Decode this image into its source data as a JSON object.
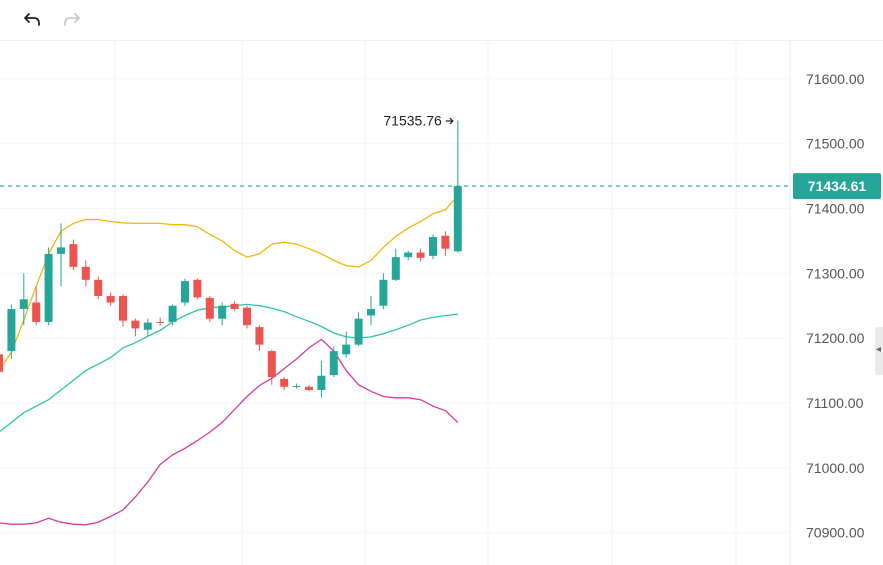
{
  "toolbar": {
    "undo_icon": "undo-arrow-icon",
    "redo_icon": "redo-arrow-icon"
  },
  "colors": {
    "up": "#26a69a",
    "down": "#ef5350",
    "upper_band": "#f0b90b",
    "middle_band": "#2ec4a6",
    "lower_band": "#d63b9b",
    "last_price_line": "#26a69a"
  },
  "chart_data": {
    "type": "candlestick",
    "ylim": [
      70850,
      71660
    ],
    "y_ticks": [
      "71600.00",
      "71500.00",
      "71400.00",
      "71300.00",
      "71200.00",
      "71100.00",
      "71000.00",
      "70900.00"
    ],
    "y_tick_values": [
      71600,
      71500,
      71400,
      71300,
      71200,
      71100,
      71000,
      70900
    ],
    "last_price": 71434.61,
    "last_price_label": "71434.61",
    "high_marker": {
      "value": 71535.76,
      "label": "71535.76"
    },
    "candles": [
      {
        "o": 71175,
        "h": 71235,
        "l": 71142,
        "c": 71148
      },
      {
        "o": 71180,
        "h": 71252,
        "l": 71168,
        "c": 71245
      },
      {
        "o": 71245,
        "h": 71300,
        "l": 71220,
        "c": 71260
      },
      {
        "o": 71255,
        "h": 71280,
        "l": 71220,
        "c": 71225
      },
      {
        "o": 71225,
        "h": 71340,
        "l": 71220,
        "c": 71330
      },
      {
        "o": 71330,
        "h": 71377,
        "l": 71280,
        "c": 71340
      },
      {
        "o": 71345,
        "h": 71352,
        "l": 71305,
        "c": 71310
      },
      {
        "o": 71310,
        "h": 71320,
        "l": 71280,
        "c": 71290
      },
      {
        "o": 71290,
        "h": 71295,
        "l": 71260,
        "c": 71265
      },
      {
        "o": 71265,
        "h": 71270,
        "l": 71250,
        "c": 71255
      },
      {
        "o": 71265,
        "h": 71268,
        "l": 71218,
        "c": 71227
      },
      {
        "o": 71227,
        "h": 71230,
        "l": 71203,
        "c": 71215
      },
      {
        "o": 71213,
        "h": 71230,
        "l": 71202,
        "c": 71224
      },
      {
        "o": 71225,
        "h": 71232,
        "l": 71219,
        "c": 71224
      },
      {
        "o": 71225,
        "h": 71252,
        "l": 71220,
        "c": 71250
      },
      {
        "o": 71255,
        "h": 71292,
        "l": 71250,
        "c": 71288
      },
      {
        "o": 71290,
        "h": 71292,
        "l": 71260,
        "c": 71263
      },
      {
        "o": 71262,
        "h": 71265,
        "l": 71225,
        "c": 71230
      },
      {
        "o": 71230,
        "h": 71255,
        "l": 71220,
        "c": 71250
      },
      {
        "o": 71253,
        "h": 71257,
        "l": 71242,
        "c": 71245
      },
      {
        "o": 71247,
        "h": 71250,
        "l": 71215,
        "c": 71220
      },
      {
        "o": 71217,
        "h": 71220,
        "l": 71180,
        "c": 71190
      },
      {
        "o": 71180,
        "h": 71182,
        "l": 71128,
        "c": 71140
      },
      {
        "o": 71137,
        "h": 71140,
        "l": 71120,
        "c": 71125
      },
      {
        "o": 71125,
        "h": 71130,
        "l": 71122,
        "c": 71126
      },
      {
        "o": 71125,
        "h": 71128,
        "l": 71118,
        "c": 71120
      },
      {
        "o": 71120,
        "h": 71165,
        "l": 71108,
        "c": 71142
      },
      {
        "o": 71143,
        "h": 71187,
        "l": 71140,
        "c": 71180
      },
      {
        "o": 71175,
        "h": 71210,
        "l": 71170,
        "c": 71190
      },
      {
        "o": 71190,
        "h": 71240,
        "l": 71188,
        "c": 71230
      },
      {
        "o": 71235,
        "h": 71265,
        "l": 71220,
        "c": 71245
      },
      {
        "o": 71250,
        "h": 71300,
        "l": 71245,
        "c": 71290
      },
      {
        "o": 71290,
        "h": 71338,
        "l": 71288,
        "c": 71325
      },
      {
        "o": 71325,
        "h": 71335,
        "l": 71320,
        "c": 71332
      },
      {
        "o": 71332,
        "h": 71338,
        "l": 71318,
        "c": 71324
      },
      {
        "o": 71327,
        "h": 71360,
        "l": 71322,
        "c": 71356
      },
      {
        "o": 71358,
        "h": 71365,
        "l": 71327,
        "c": 71338
      },
      {
        "o": 71334,
        "h": 71535.76,
        "l": 71332,
        "c": 71434.61
      }
    ],
    "upper_band": [
      71150,
      71178,
      71228,
      71280,
      71330,
      71365,
      71377,
      71383,
      71383,
      71380,
      71378,
      71377,
      71377,
      71377,
      71375,
      71375,
      71372,
      71360,
      71350,
      71335,
      71325,
      71330,
      71345,
      71348,
      71345,
      71338,
      71330,
      71320,
      71312,
      71310,
      71320,
      71340,
      71357,
      71370,
      71380,
      71392,
      71398,
      71420
    ],
    "middle_band": [
      71055,
      71070,
      71085,
      71095,
      71105,
      71120,
      71135,
      71150,
      71160,
      71170,
      71185,
      71193,
      71203,
      71212,
      71225,
      71235,
      71243,
      71247,
      71248,
      71250,
      71252,
      71250,
      71246,
      71241,
      71233,
      71226,
      71218,
      71208,
      71202,
      71200,
      71202,
      71207,
      71213,
      71220,
      71228,
      71232,
      71235,
      71237
    ],
    "lower_band": [
      70915,
      70913,
      70913,
      70915,
      70922,
      70916,
      70913,
      70912,
      70916,
      70925,
      70935,
      70955,
      70978,
      71005,
      71020,
      71030,
      71042,
      71055,
      71070,
      71090,
      71110,
      71127,
      71138,
      71153,
      71168,
      71185,
      71198,
      71180,
      71150,
      71128,
      71118,
      71110,
      71108,
      71108,
      71105,
      71095,
      71088,
      71070
    ]
  }
}
